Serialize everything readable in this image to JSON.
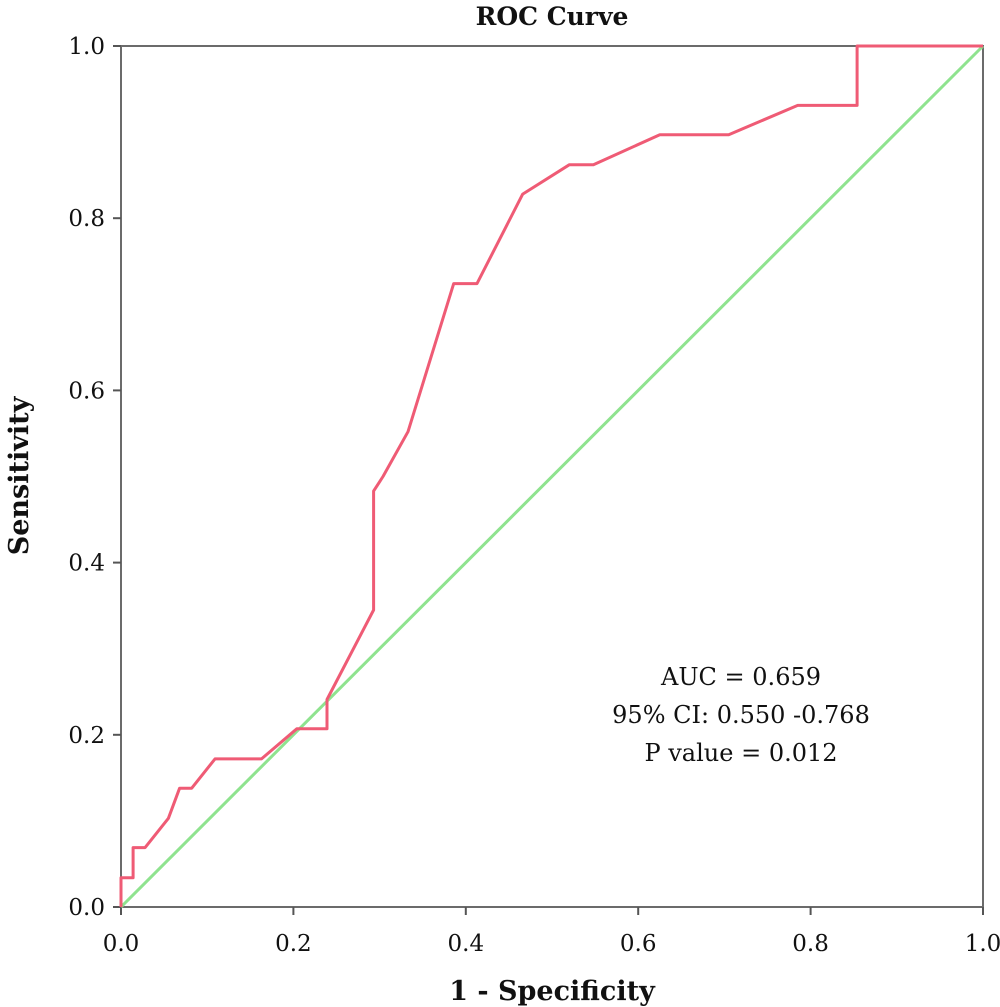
{
  "chart_data": {
    "type": "line",
    "title": "ROC Curve",
    "xlabel": "1 - Specificity",
    "ylabel": "Sensitivity",
    "xlim": [
      0,
      1
    ],
    "ylim": [
      0,
      1
    ],
    "x_ticks": [
      "0.0",
      "0.2",
      "0.4",
      "0.6",
      "0.8",
      "1.0"
    ],
    "y_ticks": [
      "0.0",
      "0.2",
      "0.4",
      "0.6",
      "0.8",
      "1.0"
    ],
    "grid": false,
    "legend": "none",
    "annotations": [
      "AUC = 0.659",
      "95% CI: 0.550 -0.768",
      "P value = 0.012"
    ],
    "series": [
      {
        "color": "#ef5b75",
        "x": [
          0.0,
          0.0,
          0.014,
          0.014,
          0.028,
          0.055,
          0.068,
          0.082,
          0.109,
          0.163,
          0.204,
          0.239,
          0.239,
          0.293,
          0.293,
          0.304,
          0.333,
          0.386,
          0.413,
          0.466,
          0.52,
          0.548,
          0.625,
          0.705,
          0.785,
          0.854,
          0.854,
          1.0
        ],
        "y": [
          0.0,
          0.034,
          0.034,
          0.069,
          0.069,
          0.103,
          0.138,
          0.138,
          0.172,
          0.172,
          0.207,
          0.207,
          0.241,
          0.345,
          0.483,
          0.5,
          0.552,
          0.724,
          0.724,
          0.828,
          0.862,
          0.862,
          0.897,
          0.897,
          0.931,
          0.931,
          1.0,
          1.0
        ]
      },
      {
        "color": "#8fe38f",
        "x": [
          0,
          1
        ],
        "y": [
          0,
          1
        ]
      }
    ]
  }
}
